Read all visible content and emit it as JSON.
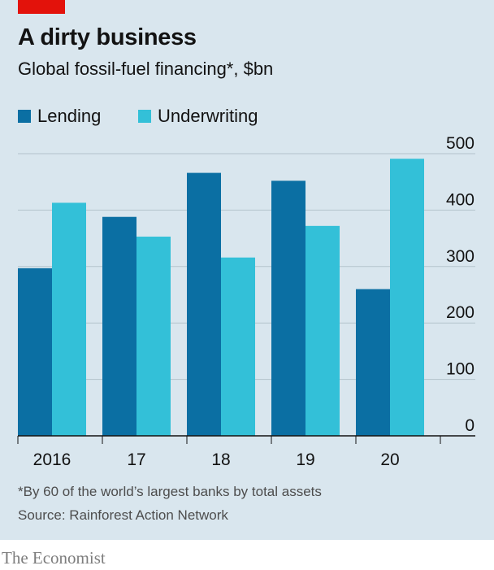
{
  "header": {
    "title": "A dirty business",
    "subtitle": "Global fossil-fuel financing*, $bn"
  },
  "chart_data": {
    "type": "bar",
    "categories": [
      "2016",
      "17",
      "18",
      "19",
      "20"
    ],
    "series": [
      {
        "name": "Lending",
        "color": "#0b6fa3",
        "values": [
          297,
          388,
          466,
          452,
          260
        ]
      },
      {
        "name": "Underwriting",
        "color": "#33c0d8",
        "values": [
          413,
          353,
          316,
          372,
          491
        ]
      }
    ],
    "yticks": [
      "0",
      "100",
      "200",
      "300",
      "400",
      "500"
    ],
    "ylim": [
      0,
      500
    ],
    "grid": true,
    "legend_position": "top-left"
  },
  "footer": {
    "footnote": "*By 60 of the world’s largest banks by total assets",
    "source": "Source: Rainforest Action Network",
    "brand": "The Economist"
  },
  "colors": {
    "background": "#d9e6ee",
    "accent": "#e3120b",
    "gridline": "#b4c3cc"
  }
}
